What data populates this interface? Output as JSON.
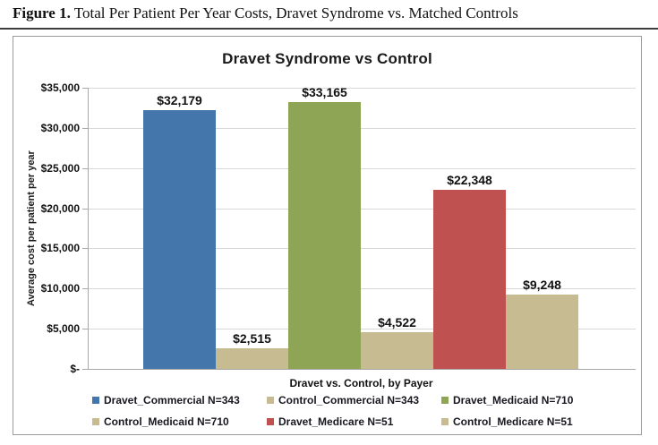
{
  "figure_caption": {
    "label": "Figure 1.",
    "text": " Total Per Patient Per Year Costs, Dravet Syndrome vs. Matched Controls"
  },
  "chart_data": {
    "type": "bar",
    "title": "Dravet Syndrome vs Control",
    "xlabel": "Dravet vs. Control, by Payer",
    "ylabel": "Average cost per patient per year",
    "ylim": [
      0,
      35000
    ],
    "ytick_step": 5000,
    "ytick_labels": [
      "$-",
      "$5,000",
      "$10,000",
      "$15,000",
      "$20,000",
      "$25,000",
      "$30,000",
      "$35,000"
    ],
    "grid": true,
    "legend_position": "bottom",
    "colors": {
      "blue": "#4576ab",
      "tan": "#c7bb91",
      "green": "#8da554",
      "red": "#bf5150"
    },
    "series": [
      {
        "name": "Dravet_Commercial N=343",
        "value": 32179,
        "label": "$32,179",
        "color": "#4576ab"
      },
      {
        "name": "Control_Commercial N=343",
        "value": 2515,
        "label": "$2,515",
        "color": "#c7bb91"
      },
      {
        "name": "Dravet_Medicaid N=710",
        "value": 33165,
        "label": "$33,165",
        "color": "#8da554"
      },
      {
        "name": "Control_Medicaid N=710",
        "value": 4522,
        "label": "$4,522",
        "color": "#c7bb91"
      },
      {
        "name": "Dravet_Medicare N=51",
        "value": 22348,
        "label": "$22,348",
        "color": "#bf5150"
      },
      {
        "name": "Control_Medicare N=51",
        "value": 9248,
        "label": "$9,248",
        "color": "#c7bb91"
      }
    ]
  }
}
